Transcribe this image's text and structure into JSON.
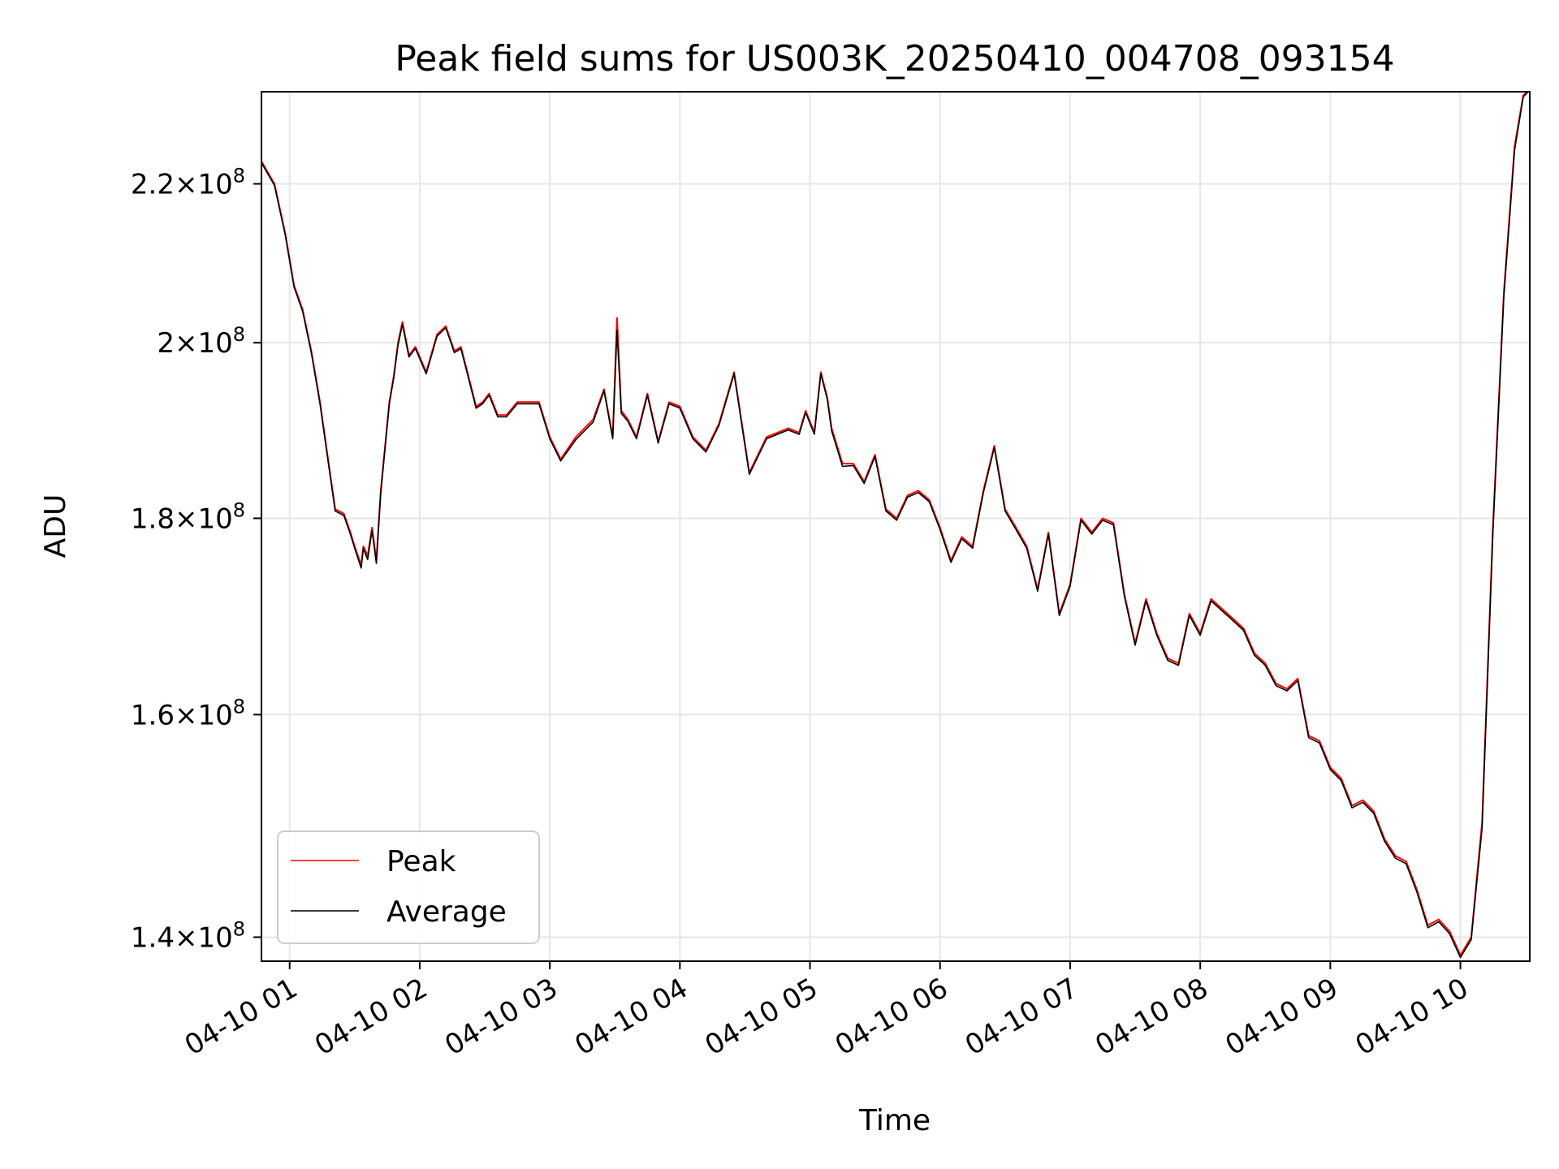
{
  "chart_data": {
    "type": "line",
    "title": "Peak field sums for US003K_20250410_004708_093154",
    "xlabel": "Time",
    "ylabel": "ADU",
    "yscale": "log",
    "grid": true,
    "legend_position": "lower-left",
    "ylim": [
      138000000,
      232500000
    ],
    "xlim": [
      "2025-04-10 00:47",
      "2025-04-10 10:32"
    ],
    "x_ticks": [
      {
        "value": "2025-04-10 01:00",
        "label": "04-10 01"
      },
      {
        "value": "2025-04-10 02:00",
        "label": "04-10 02"
      },
      {
        "value": "2025-04-10 03:00",
        "label": "04-10 03"
      },
      {
        "value": "2025-04-10 04:00",
        "label": "04-10 04"
      },
      {
        "value": "2025-04-10 05:00",
        "label": "04-10 05"
      },
      {
        "value": "2025-04-10 06:00",
        "label": "04-10 06"
      },
      {
        "value": "2025-04-10 07:00",
        "label": "04-10 07"
      },
      {
        "value": "2025-04-10 08:00",
        "label": "04-10 08"
      },
      {
        "value": "2025-04-10 09:00",
        "label": "04-10 09"
      },
      {
        "value": "2025-04-10 10:00",
        "label": "04-10 10"
      }
    ],
    "y_ticks": [
      {
        "value": 140000000,
        "mantissa": "1.4",
        "exp": "8"
      },
      {
        "value": 160000000,
        "mantissa": "1.6",
        "exp": "8"
      },
      {
        "value": 180000000,
        "mantissa": "1.8",
        "exp": "8"
      },
      {
        "value": 200000000,
        "mantissa": "2",
        "exp": "8"
      },
      {
        "value": 220000000,
        "mantissa": "2.2",
        "exp": "8"
      }
    ],
    "x": [
      "2025-04-10 00:47",
      "2025-04-10 00:53",
      "2025-04-10 00:58",
      "2025-04-10 01:02",
      "2025-04-10 01:06",
      "2025-04-10 01:10",
      "2025-04-10 01:14",
      "2025-04-10 01:18",
      "2025-04-10 01:21",
      "2025-04-10 01:25",
      "2025-04-10 01:28",
      "2025-04-10 01:30",
      "2025-04-10 01:33",
      "2025-04-10 01:34",
      "2025-04-10 01:36",
      "2025-04-10 01:38",
      "2025-04-10 01:40",
      "2025-04-10 01:42",
      "2025-04-10 01:46",
      "2025-04-10 01:48",
      "2025-04-10 01:50",
      "2025-04-10 01:52",
      "2025-04-10 01:55",
      "2025-04-10 01:58",
      "2025-04-10 02:03",
      "2025-04-10 02:08",
      "2025-04-10 02:12",
      "2025-04-10 02:16",
      "2025-04-10 02:19",
      "2025-04-10 02:23",
      "2025-04-10 02:26",
      "2025-04-10 02:29",
      "2025-04-10 02:32",
      "2025-04-10 02:36",
      "2025-04-10 02:40",
      "2025-04-10 02:45",
      "2025-04-10 02:50",
      "2025-04-10 02:55",
      "2025-04-10 03:00",
      "2025-04-10 03:05",
      "2025-04-10 03:12",
      "2025-04-10 03:20",
      "2025-04-10 03:25",
      "2025-04-10 03:29",
      "2025-04-10 03:31",
      "2025-04-10 03:33",
      "2025-04-10 03:36",
      "2025-04-10 03:40",
      "2025-04-10 03:45",
      "2025-04-10 03:50",
      "2025-04-10 03:55",
      "2025-04-10 04:00",
      "2025-04-10 04:06",
      "2025-04-10 04:12",
      "2025-04-10 04:18",
      "2025-04-10 04:25",
      "2025-04-10 04:32",
      "2025-04-10 04:40",
      "2025-04-10 04:45",
      "2025-04-10 04:50",
      "2025-04-10 04:55",
      "2025-04-10 04:58",
      "2025-04-10 05:02",
      "2025-04-10 05:05",
      "2025-04-10 05:08",
      "2025-04-10 05:10",
      "2025-04-10 05:15",
      "2025-04-10 05:20",
      "2025-04-10 05:25",
      "2025-04-10 05:30",
      "2025-04-10 05:35",
      "2025-04-10 05:40",
      "2025-04-10 05:45",
      "2025-04-10 05:50",
      "2025-04-10 05:55",
      "2025-04-10 06:00",
      "2025-04-10 06:05",
      "2025-04-10 06:10",
      "2025-04-10 06:15",
      "2025-04-10 06:20",
      "2025-04-10 06:25",
      "2025-04-10 06:30",
      "2025-04-10 06:35",
      "2025-04-10 06:40",
      "2025-04-10 06:45",
      "2025-04-10 06:50",
      "2025-04-10 06:55",
      "2025-04-10 07:00",
      "2025-04-10 07:05",
      "2025-04-10 07:10",
      "2025-04-10 07:15",
      "2025-04-10 07:20",
      "2025-04-10 07:25",
      "2025-04-10 07:30",
      "2025-04-10 07:35",
      "2025-04-10 07:40",
      "2025-04-10 07:45",
      "2025-04-10 07:50",
      "2025-04-10 07:55",
      "2025-04-10 08:00",
      "2025-04-10 08:05",
      "2025-04-10 08:10",
      "2025-04-10 08:15",
      "2025-04-10 08:20",
      "2025-04-10 08:25",
      "2025-04-10 08:30",
      "2025-04-10 08:35",
      "2025-04-10 08:40",
      "2025-04-10 08:45",
      "2025-04-10 08:50",
      "2025-04-10 08:55",
      "2025-04-10 09:00",
      "2025-04-10 09:05",
      "2025-04-10 09:10",
      "2025-04-10 09:15",
      "2025-04-10 09:20",
      "2025-04-10 09:25",
      "2025-04-10 09:30",
      "2025-04-10 09:35",
      "2025-04-10 09:40",
      "2025-04-10 09:45",
      "2025-04-10 09:50",
      "2025-04-10 09:55",
      "2025-04-10 10:00",
      "2025-04-10 10:05",
      "2025-04-10 10:10",
      "2025-04-10 10:15",
      "2025-04-10 10:20",
      "2025-04-10 10:25",
      "2025-04-10 10:29",
      "2025-04-10 10:31"
    ],
    "series": [
      {
        "name": "Peak",
        "color": "#ff0000",
        "values": [
          223000000,
          220000000,
          213500000,
          207000000,
          204000000,
          199000000,
          193000000,
          186000000,
          181000000,
          180500000,
          178500000,
          177000000,
          175000000,
          177000000,
          176000000,
          179000000,
          175500000,
          183000000,
          193000000,
          196000000,
          200000000,
          202500000,
          198500000,
          199500000,
          196500000,
          201000000,
          202000000,
          199000000,
          199500000,
          195500000,
          192500000,
          193000000,
          194000000,
          191500000,
          191500000,
          193000000,
          193000000,
          193000000,
          189000000,
          186500000,
          189000000,
          191000000,
          194500000,
          189000000,
          203000000,
          192000000,
          191000000,
          189000000,
          194000000,
          188500000,
          193000000,
          192500000,
          189000000,
          187500000,
          190500000,
          196500000,
          185000000,
          189000000,
          189500000,
          190000000,
          189500000,
          192000000,
          189500000,
          196500000,
          193500000,
          190000000,
          186000000,
          186000000,
          184000000,
          187000000,
          181000000,
          180000000,
          182500000,
          183000000,
          182000000,
          179000000,
          175500000,
          178000000,
          177000000,
          183000000,
          188000000,
          181000000,
          179000000,
          177000000,
          172500000,
          178500000,
          170000000,
          173000000,
          180000000,
          178500000,
          180000000,
          179500000,
          172000000,
          167000000,
          171500000,
          168000000,
          165500000,
          165000000,
          170000000,
          168000000,
          171500000,
          170500000,
          169500000,
          168500000,
          166000000,
          165000000,
          163000000,
          162500000,
          163500000,
          158000000,
          157500000,
          155000000,
          154000000,
          151500000,
          152000000,
          151000000,
          148500000,
          147000000,
          146500000,
          144000000,
          141000000,
          141500000,
          140500000,
          138500000,
          140000000,
          150000000,
          179000000,
          206000000,
          225000000,
          232000000,
          232500000
        ],
        "note": ""
      },
      {
        "name": "Average",
        "color": "#000000",
        "values": [
          222800000,
          219800000,
          213300000,
          206800000,
          203800000,
          198800000,
          192800000,
          185800000,
          180800000,
          180300000,
          178300000,
          176800000,
          174700000,
          176800000,
          175600000,
          178700000,
          175200000,
          182700000,
          192800000,
          195800000,
          199700000,
          202200000,
          198300000,
          199300000,
          196300000,
          200800000,
          201800000,
          198800000,
          199300000,
          195300000,
          192300000,
          192800000,
          193800000,
          191300000,
          191300000,
          192800000,
          192800000,
          192800000,
          188800000,
          186300000,
          188700000,
          190700000,
          194300000,
          188800000,
          201500000,
          191700000,
          190800000,
          188800000,
          193800000,
          188300000,
          192800000,
          192300000,
          188800000,
          187300000,
          190300000,
          196300000,
          184800000,
          188800000,
          189300000,
          189800000,
          189300000,
          191800000,
          189300000,
          196300000,
          193300000,
          189700000,
          185700000,
          185800000,
          183800000,
          186800000,
          180800000,
          179800000,
          182300000,
          182800000,
          181800000,
          178800000,
          175300000,
          177800000,
          176800000,
          182800000,
          187800000,
          180800000,
          178800000,
          176800000,
          172300000,
          178300000,
          169800000,
          172800000,
          179800000,
          178300000,
          179800000,
          179300000,
          171800000,
          166800000,
          171300000,
          167800000,
          165300000,
          164800000,
          169800000,
          167800000,
          171300000,
          170300000,
          169300000,
          168300000,
          165800000,
          164800000,
          162800000,
          162300000,
          163300000,
          157800000,
          157300000,
          154800000,
          153800000,
          151300000,
          151800000,
          150800000,
          148300000,
          146800000,
          146300000,
          143800000,
          140800000,
          141300000,
          140300000,
          138300000,
          139800000,
          149500000,
          178500000,
          205500000,
          224500000,
          231800000,
          232400000
        ]
      }
    ]
  }
}
